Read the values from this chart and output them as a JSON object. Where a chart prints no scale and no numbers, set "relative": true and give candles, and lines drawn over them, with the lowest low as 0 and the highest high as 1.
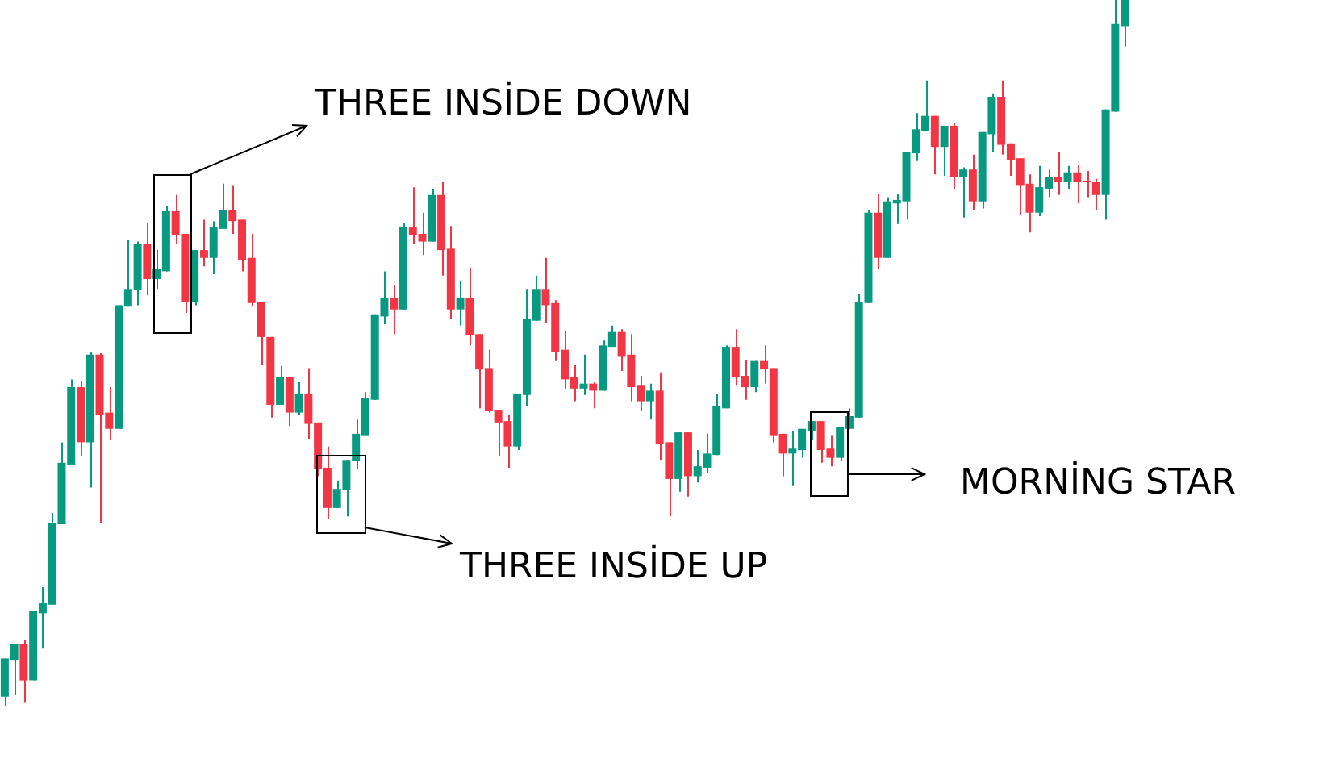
{
  "chart_data": {
    "type": "candlestick",
    "relative": true,
    "categories": [
      null,
      null,
      null,
      null,
      null,
      null,
      null,
      null,
      null,
      null,
      null,
      null,
      null,
      null,
      null,
      null,
      null,
      null,
      null,
      null,
      null,
      null,
      null,
      null,
      null,
      null,
      null,
      null,
      null,
      null,
      null,
      null,
      null,
      null,
      null,
      null,
      null,
      null,
      null,
      null,
      null,
      null,
      null,
      null,
      null,
      null,
      null,
      null,
      null,
      null,
      null,
      null,
      null,
      null,
      null,
      null,
      null,
      null,
      null,
      null,
      null,
      null,
      null,
      null,
      null,
      null,
      null,
      null,
      null,
      null,
      null,
      null,
      null,
      null,
      null,
      null,
      null,
      null,
      null,
      null,
      null,
      null,
      null,
      null,
      null,
      null,
      null,
      null,
      null,
      null,
      null,
      null,
      null,
      null,
      null,
      null,
      null,
      null,
      null,
      null,
      null,
      null,
      null,
      null,
      null,
      null,
      null,
      null,
      null,
      null,
      null,
      null,
      null,
      null,
      null,
      null,
      null,
      null,
      null
    ],
    "ohlc": [
      [
        0.014,
        0.068,
        0,
        0.068
      ],
      [
        0.066,
        0.089,
        0.016,
        0.089
      ],
      [
        0.089,
        0.094,
        0.005,
        0.037
      ],
      [
        0.037,
        0.135,
        0.037,
        0.135
      ],
      [
        0.132,
        0.169,
        0.082,
        0.146
      ],
      [
        0.144,
        0.274,
        0.144,
        0.26
      ],
      [
        0.258,
        0.374,
        0.258,
        0.345
      ],
      [
        0.342,
        0.463,
        0.342,
        0.452
      ],
      [
        0.452,
        0.461,
        0.354,
        0.374
      ],
      [
        0.374,
        0.502,
        0.31,
        0.498
      ],
      [
        0.498,
        0.5,
        0.26,
        0.413
      ],
      [
        0.416,
        0.452,
        0.377,
        0.393
      ],
      [
        0.393,
        0.568,
        0.393,
        0.568
      ],
      [
        0.566,
        0.66,
        0.566,
        0.591
      ],
      [
        0.589,
        0.658,
        0.568,
        0.655
      ],
      [
        0.655,
        0.685,
        0.582,
        0.605
      ],
      [
        0.605,
        0.646,
        0.591,
        0.619
      ],
      [
        0.616,
        0.708,
        0.616,
        0.701
      ],
      [
        0.701,
        0.724,
        0.655,
        0.667
      ],
      [
        0.669,
        0.669,
        0.557,
        0.573
      ],
      [
        0.573,
        0.646,
        0.568,
        0.646
      ],
      [
        0.646,
        0.689,
        0.623,
        0.635
      ],
      [
        0.635,
        0.687,
        0.612,
        0.678
      ],
      [
        0.676,
        0.74,
        0.676,
        0.703
      ],
      [
        0.703,
        0.737,
        0.669,
        0.687
      ],
      [
        0.689,
        0.689,
        0.616,
        0.632
      ],
      [
        0.635,
        0.669,
        0.566,
        0.571
      ],
      [
        0.573,
        0.573,
        0.484,
        0.523
      ],
      [
        0.523,
        0.523,
        0.409,
        0.427
      ],
      [
        0.427,
        0.482,
        0.427,
        0.466
      ],
      [
        0.466,
        0.466,
        0.397,
        0.416
      ],
      [
        0.416,
        0.459,
        0.413,
        0.443
      ],
      [
        0.443,
        0.479,
        0.379,
        0.4
      ],
      [
        0.402,
        0.402,
        0.326,
        0.336
      ],
      [
        0.338,
        0.368,
        0.265,
        0.281
      ],
      [
        0.281,
        0.32,
        0.281,
        0.308
      ],
      [
        0.306,
        0.349,
        0.269,
        0.349
      ],
      [
        0.347,
        0.406,
        0.336,
        0.386
      ],
      [
        0.384,
        0.445,
        0.384,
        0.436
      ],
      [
        0.434,
        0.555,
        0.434,
        0.555
      ],
      [
        0.552,
        0.616,
        0.541,
        0.578
      ],
      [
        0.578,
        0.596,
        0.527,
        0.562
      ],
      [
        0.562,
        0.685,
        0.562,
        0.678
      ],
      [
        0.678,
        0.735,
        0.655,
        0.667
      ],
      [
        0.669,
        0.699,
        0.639,
        0.658
      ],
      [
        0.658,
        0.733,
        0.658,
        0.724
      ],
      [
        0.724,
        0.742,
        0.61,
        0.646
      ],
      [
        0.648,
        0.68,
        0.548,
        0.562
      ],
      [
        0.562,
        0.603,
        0.539,
        0.578
      ],
      [
        0.578,
        0.621,
        0.511,
        0.525
      ],
      [
        0.527,
        0.527,
        0.422,
        0.477
      ],
      [
        0.479,
        0.505,
        0.416,
        0.418
      ],
      [
        0.42,
        0.42,
        0.354,
        0.402
      ],
      [
        0.404,
        0.413,
        0.338,
        0.368
      ],
      [
        0.368,
        0.443,
        0.363,
        0.443
      ],
      [
        0.441,
        0.591,
        0.425,
        0.548
      ],
      [
        0.546,
        0.61,
        0.546,
        0.591
      ],
      [
        0.591,
        0.635,
        0.543,
        0.568
      ],
      [
        0.571,
        0.575,
        0.489,
        0.502
      ],
      [
        0.505,
        0.532,
        0.45,
        0.463
      ],
      [
        0.466,
        0.484,
        0.432,
        0.45
      ],
      [
        0.45,
        0.498,
        0.441,
        0.457
      ],
      [
        0.457,
        0.459,
        0.422,
        0.447
      ],
      [
        0.447,
        0.518,
        0.447,
        0.511
      ],
      [
        0.509,
        0.539,
        0.509,
        0.53
      ],
      [
        0.53,
        0.534,
        0.475,
        0.495
      ],
      [
        0.498,
        0.527,
        0.432,
        0.452
      ],
      [
        0.454,
        0.468,
        0.418,
        0.432
      ],
      [
        0.432,
        0.457,
        0.406,
        0.447
      ],
      [
        0.447,
        0.473,
        0.349,
        0.372
      ],
      [
        0.374,
        0.374,
        0.269,
        0.322
      ],
      [
        0.322,
        0.388,
        0.304,
        0.388
      ],
      [
        0.388,
        0.388,
        0.297,
        0.326
      ],
      [
        0.326,
        0.363,
        0.317,
        0.34
      ],
      [
        0.338,
        0.386,
        0.331,
        0.358
      ],
      [
        0.356,
        0.443,
        0.356,
        0.425
      ],
      [
        0.422,
        0.511,
        0.422,
        0.509
      ],
      [
        0.509,
        0.534,
        0.454,
        0.466
      ],
      [
        0.468,
        0.491,
        0.434,
        0.452
      ],
      [
        0.452,
        0.489,
        0.445,
        0.489
      ],
      [
        0.489,
        0.511,
        0.457,
        0.477
      ],
      [
        0.479,
        0.479,
        0.374,
        0.384
      ],
      [
        0.386,
        0.386,
        0.326,
        0.358
      ],
      [
        0.358,
        0.39,
        0.313,
        0.365
      ],
      [
        0.363,
        0.393,
        0.352,
        0.393
      ],
      [
        0.39,
        0.404,
        0.377,
        0.404
      ],
      [
        0.404,
        0.404,
        0.345,
        0.363
      ],
      [
        0.365,
        0.384,
        0.34,
        0.352
      ],
      [
        0.352,
        0.395,
        0.347,
        0.395
      ],
      [
        0.393,
        0.422,
        0.393,
        0.411
      ],
      [
        0.409,
        0.584,
        0.409,
        0.573
      ],
      [
        0.571,
        0.703,
        0.571,
        0.699
      ],
      [
        0.699,
        0.726,
        0.619,
        0.635
      ],
      [
        0.635,
        0.721,
        0.635,
        0.715
      ],
      [
        0.712,
        0.726,
        0.683,
        0.717
      ],
      [
        0.715,
        0.785,
        0.689,
        0.785
      ],
      [
        0.783,
        0.84,
        0.772,
        0.817
      ],
      [
        0.815,
        0.886,
        0.815,
        0.836
      ],
      [
        0.836,
        0.836,
        0.753,
        0.792
      ],
      [
        0.792,
        0.822,
        0.751,
        0.822
      ],
      [
        0.822,
        0.826,
        0.733,
        0.749
      ],
      [
        0.749,
        0.763,
        0.692,
        0.76
      ],
      [
        0.76,
        0.781,
        0.703,
        0.715
      ],
      [
        0.715,
        0.813,
        0.705,
        0.813
      ],
      [
        0.81,
        0.868,
        0.785,
        0.863
      ],
      [
        0.863,
        0.886,
        0.781,
        0.795
      ],
      [
        0.797,
        0.797,
        0.751,
        0.774
      ],
      [
        0.776,
        0.776,
        0.696,
        0.737
      ],
      [
        0.74,
        0.753,
        0.671,
        0.699
      ],
      [
        0.699,
        0.765,
        0.694,
        0.735
      ],
      [
        0.733,
        0.76,
        0.721,
        0.749
      ],
      [
        0.749,
        0.785,
        0.724,
        0.742
      ],
      [
        0.742,
        0.765,
        0.733,
        0.756
      ],
      [
        0.756,
        0.767,
        0.712,
        0.742
      ],
      [
        0.744,
        0.758,
        0.721,
        0.742
      ],
      [
        0.742,
        0.747,
        0.703,
        0.724
      ],
      [
        0.724,
        0.845,
        0.689,
        0.845
      ],
      [
        0.842,
        1,
        0.842,
        0.966
      ],
      [
        0.963,
        1,
        0.934,
        1
      ]
    ],
    "colors": [
      "#089981",
      "#089981",
      "#f23645",
      "#089981",
      "#089981",
      "#089981",
      "#089981",
      "#089981",
      "#f23645",
      "#089981",
      "#f23645",
      "#f23645",
      "#089981",
      "#089981",
      "#089981",
      "#f23645",
      "#089981",
      "#089981",
      "#f23645",
      "#f23645",
      "#089981",
      "#f23645",
      "#089981",
      "#089981",
      "#f23645",
      "#f23645",
      "#f23645",
      "#f23645",
      "#f23645",
      "#089981",
      "#f23645",
      "#089981",
      "#f23645",
      "#f23645",
      "#f23645",
      "#089981",
      "#089981",
      "#089981",
      "#089981",
      "#089981",
      "#089981",
      "#f23645",
      "#089981",
      "#f23645",
      "#f23645",
      "#089981",
      "#f23645",
      "#f23645",
      "#089981",
      "#f23645",
      "#f23645",
      "#f23645",
      "#f23645",
      "#f23645",
      "#089981",
      "#089981",
      "#089981",
      "#f23645",
      "#f23645",
      "#f23645",
      "#f23645",
      "#089981",
      "#f23645",
      "#089981",
      "#089981",
      "#f23645",
      "#f23645",
      "#f23645",
      "#089981",
      "#f23645",
      "#f23645",
      "#089981",
      "#f23645",
      "#089981",
      "#089981",
      "#089981",
      "#089981",
      "#f23645",
      "#f23645",
      "#089981",
      "#f23645",
      "#f23645",
      "#f23645",
      "#089981",
      "#089981",
      "#089981",
      "#f23645",
      "#f23645",
      "#089981",
      "#089981",
      "#089981",
      "#089981",
      "#f23645",
      "#089981",
      "#089981",
      "#089981",
      "#089981",
      "#089981",
      "#f23645",
      "#089981",
      "#f23645",
      "#089981",
      "#f23645",
      "#089981",
      "#089981",
      "#f23645",
      "#f23645",
      "#f23645",
      "#f23645",
      "#089981",
      "#089981",
      "#f23645",
      "#089981",
      "#f23645",
      "#f23645",
      "#f23645",
      "#089981",
      "#089981",
      "#089981"
    ],
    "annotations": [
      "THREE INSİDE DOWN",
      "THREE INSİDE UP",
      "MORNİNG STAR"
    ]
  }
}
